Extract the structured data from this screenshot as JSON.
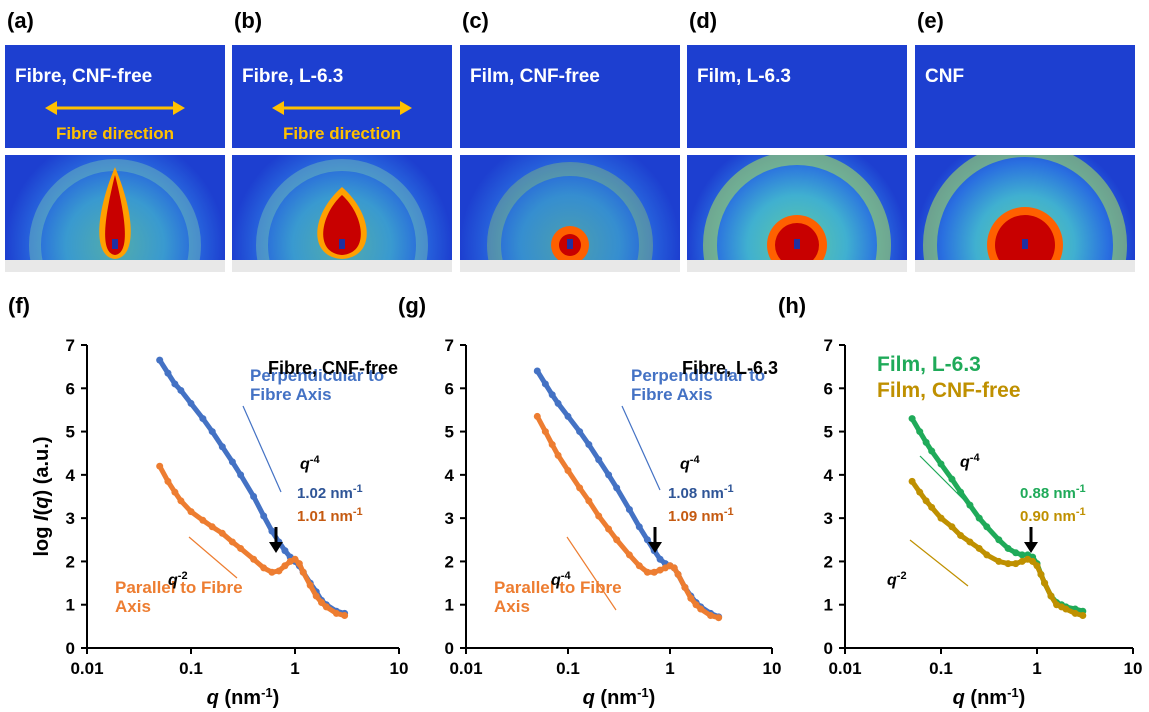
{
  "image_panels": [
    {
      "label": "(a)",
      "caption": "Fibre, CNF-free",
      "direction": "Fibre direction"
    },
    {
      "label": "(b)",
      "caption": "Fibre, L-6.3",
      "direction": "Fibre direction"
    },
    {
      "label": "(c)",
      "caption": "Film, CNF-free"
    },
    {
      "label": "(d)",
      "caption": "Film, L-6.3"
    },
    {
      "label": "(e)",
      "caption": "CNF"
    }
  ],
  "chart_data": [
    {
      "type": "scatter",
      "panel_label": "(f)",
      "title": "Fibre, CNF-free",
      "x_label": [
        {
          "text": "q",
          "style": "italic"
        },
        {
          "text": " (nm"
        },
        {
          "text": "-1",
          "style": "sup"
        },
        {
          "text": ")"
        }
      ],
      "y_label": [
        {
          "text": "log "
        },
        {
          "text": "I",
          "style": "italic"
        },
        {
          "text": "("
        },
        {
          "text": "q",
          "style": "italic"
        },
        {
          "text": ") (a.u.)"
        }
      ],
      "log_x": true,
      "xlim": [
        0.01,
        10
      ],
      "xticks": [
        0.01,
        0.1,
        1,
        10
      ],
      "ylim": [
        0,
        7
      ],
      "yticks": [
        0,
        1,
        2,
        3,
        4,
        5,
        6,
        7
      ],
      "x": [
        0.05,
        0.06,
        0.07,
        0.08,
        0.1,
        0.13,
        0.16,
        0.2,
        0.25,
        0.3,
        0.4,
        0.5,
        0.6,
        0.7,
        0.8,
        0.9,
        1.0,
        1.1,
        1.2,
        1.4,
        1.6,
        1.8,
        2.0,
        2.5,
        3.0
      ],
      "series": [
        {
          "name": "Perpendicular to Fibre Axis",
          "color": "#4472c4",
          "values": [
            6.65,
            6.35,
            6.1,
            5.95,
            5.65,
            5.3,
            5.0,
            4.65,
            4.3,
            4.0,
            3.5,
            3.05,
            2.7,
            2.45,
            2.25,
            2.1,
            2.0,
            1.9,
            1.75,
            1.5,
            1.3,
            1.1,
            1.0,
            0.85,
            0.8
          ]
        },
        {
          "name": "Parallel to Fibre Axis",
          "color": "#ed7d31",
          "values": [
            4.2,
            3.85,
            3.6,
            3.4,
            3.15,
            2.95,
            2.8,
            2.65,
            2.45,
            2.3,
            2.05,
            1.85,
            1.75,
            1.78,
            1.9,
            2.0,
            2.05,
            1.95,
            1.75,
            1.45,
            1.2,
            1.05,
            0.95,
            0.8,
            0.75
          ]
        }
      ],
      "annotations": [
        {
          "text": "q",
          "sup": "-4",
          "color": "#000000"
        },
        {
          "text": "q",
          "sup": "-2",
          "color": "#000000"
        },
        {
          "text": "1.02 nm",
          "sup": "-1",
          "color": "#2f5597"
        },
        {
          "text": "1.01 nm",
          "sup": "-1",
          "color": "#c55a11"
        }
      ]
    },
    {
      "type": "scatter",
      "panel_label": "(g)",
      "title": "Fibre, L-6.3",
      "x_label": [
        {
          "text": "q",
          "style": "italic"
        },
        {
          "text": " (nm"
        },
        {
          "text": "-1",
          "style": "sup"
        },
        {
          "text": ")"
        }
      ],
      "log_x": true,
      "xlim": [
        0.01,
        10
      ],
      "xticks": [
        0.01,
        0.1,
        1,
        10
      ],
      "ylim": [
        0,
        7
      ],
      "yticks": [
        0,
        1,
        2,
        3,
        4,
        5,
        6,
        7
      ],
      "x": [
        0.05,
        0.06,
        0.07,
        0.08,
        0.1,
        0.13,
        0.16,
        0.2,
        0.25,
        0.3,
        0.4,
        0.5,
        0.6,
        0.7,
        0.8,
        0.9,
        1.0,
        1.1,
        1.2,
        1.4,
        1.6,
        1.8,
        2.0,
        2.5,
        3.0
      ],
      "series": [
        {
          "name": "Perpendicular to Fibre Axis",
          "color": "#4472c4",
          "values": [
            6.4,
            6.1,
            5.85,
            5.65,
            5.35,
            5.0,
            4.7,
            4.35,
            4.0,
            3.7,
            3.2,
            2.8,
            2.5,
            2.25,
            2.05,
            1.95,
            1.9,
            1.85,
            1.7,
            1.4,
            1.2,
            1.05,
            0.95,
            0.8,
            0.72
          ]
        },
        {
          "name": "Parallel to Fibre Axis",
          "color": "#ed7d31",
          "values": [
            5.35,
            5.0,
            4.7,
            4.45,
            4.1,
            3.7,
            3.4,
            3.05,
            2.75,
            2.5,
            2.15,
            1.9,
            1.75,
            1.75,
            1.8,
            1.85,
            1.9,
            1.85,
            1.7,
            1.4,
            1.15,
            1.0,
            0.9,
            0.75,
            0.7
          ]
        }
      ],
      "annotations": [
        {
          "text": "q",
          "sup": "-4",
          "color": "#000000"
        },
        {
          "text": "q",
          "sup": "-4",
          "color": "#000000"
        },
        {
          "text": "1.08 nm",
          "sup": "-1",
          "color": "#2f5597"
        },
        {
          "text": "1.09 nm",
          "sup": "-1",
          "color": "#c55a11"
        }
      ]
    },
    {
      "type": "scatter",
      "panel_label": "(h)",
      "x_label": [
        {
          "text": "q",
          "style": "italic"
        },
        {
          "text": " (nm"
        },
        {
          "text": "-1",
          "style": "sup"
        },
        {
          "text": ")"
        }
      ],
      "log_x": true,
      "xlim": [
        0.01,
        10
      ],
      "xticks": [
        0.01,
        0.1,
        1,
        10
      ],
      "ylim": [
        0,
        7
      ],
      "yticks": [
        0,
        1,
        2,
        3,
        4,
        5,
        6,
        7
      ],
      "x": [
        0.05,
        0.06,
        0.07,
        0.08,
        0.1,
        0.13,
        0.16,
        0.2,
        0.25,
        0.3,
        0.4,
        0.5,
        0.6,
        0.7,
        0.8,
        0.9,
        1.0,
        1.1,
        1.2,
        1.4,
        1.6,
        1.8,
        2.0,
        2.5,
        3.0
      ],
      "series": [
        {
          "name": "Film, L-6.3",
          "color": "#1faa59",
          "values": [
            5.3,
            5.0,
            4.75,
            4.55,
            4.25,
            3.9,
            3.6,
            3.3,
            3.0,
            2.8,
            2.5,
            2.3,
            2.2,
            2.15,
            2.15,
            2.1,
            1.95,
            1.7,
            1.5,
            1.2,
            1.05,
            1.0,
            0.95,
            0.9,
            0.85
          ]
        },
        {
          "name": "Film, CNF-free",
          "color": "#bf9000",
          "values": [
            3.85,
            3.6,
            3.4,
            3.25,
            3.0,
            2.8,
            2.6,
            2.45,
            2.3,
            2.15,
            2.0,
            1.95,
            1.95,
            2.0,
            2.05,
            2.0,
            1.9,
            1.7,
            1.5,
            1.2,
            1.0,
            0.95,
            0.9,
            0.8,
            0.75
          ]
        }
      ],
      "annotations": [
        {
          "text": "q",
          "sup": "-4",
          "color": "#000000"
        },
        {
          "text": "q",
          "sup": "-2",
          "color": "#000000"
        },
        {
          "text": "0.88 nm",
          "sup": "-1",
          "color": "#1faa59"
        },
        {
          "text": "0.90 nm",
          "sup": "-1",
          "color": "#bf9000"
        }
      ]
    }
  ]
}
